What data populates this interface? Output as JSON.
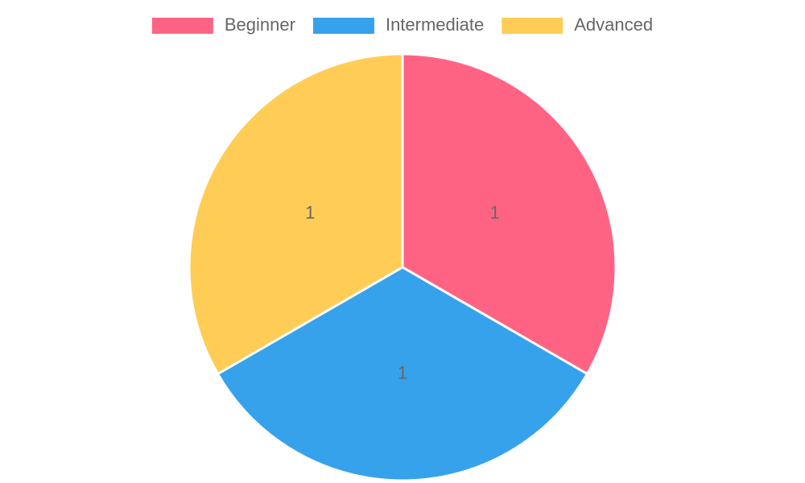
{
  "chart_data": {
    "type": "pie",
    "legend": "top",
    "categories": [
      "Beginner",
      "Intermediate",
      "Advanced"
    ],
    "values": [
      1,
      1,
      1
    ],
    "colors": [
      "#ff6384",
      "#36a2eb",
      "#ffcd56"
    ]
  }
}
